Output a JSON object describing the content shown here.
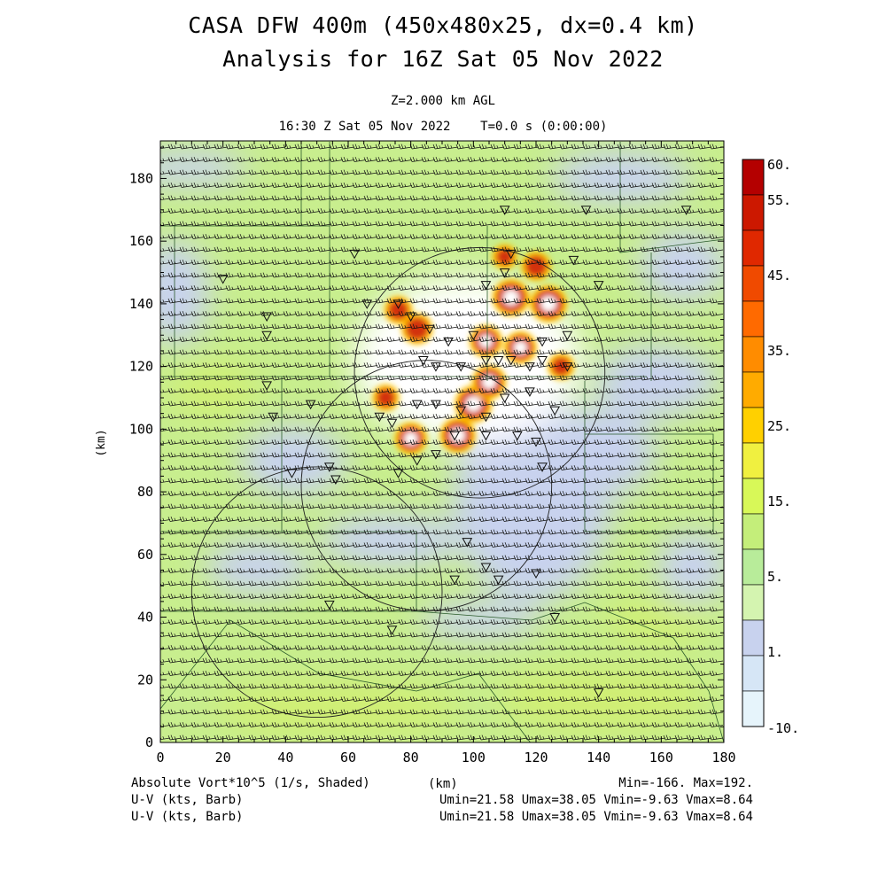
{
  "header": {
    "title_line1": "CASA DFW 400m (450x480x25, dx=0.4 km)",
    "title_line2": "Analysis for 16Z Sat 05 Nov 2022",
    "level": "Z=2.000 km AGL",
    "valid_time": "16:30 Z Sat 05 Nov 2022    T=0.0 s (0:00:00)"
  },
  "footer": {
    "field_label": "Absolute Vort*10^5 (1/s, Shaded)",
    "x_unit": "(km)",
    "minmax": "Min=-166. Max=192.",
    "barb1_label": "U-V (kts, Barb)",
    "barb1_stats": "Umin=21.58 Umax=38.05 Vmin=-9.63 Vmax=8.64",
    "barb2_label": "U-V (kts, Barb)",
    "barb2_stats": "Umin=21.58 Umax=38.05 Vmin=-9.63 Vmax=8.64"
  },
  "colors": {
    "background_green": "#c8ee8e",
    "lavender": "#c8d2ee",
    "lightblue": "#d8eefa",
    "white": "#ffffff",
    "core_red": "#d23210",
    "core_orange": "#ff8c00",
    "core_yellow": "#ffd000"
  },
  "chart_data": {
    "type": "heatmap",
    "title": "Absolute Vort*10^5 (1/s, Shaded)",
    "xlabel": "(km)",
    "ylabel": "(km)",
    "xlim": [
      0,
      180
    ],
    "ylim": [
      0,
      192
    ],
    "x_ticks": [
      "0",
      "20",
      "40",
      "60",
      "80",
      "100",
      "120",
      "140",
      "160",
      "180"
    ],
    "y_ticks": [
      "0",
      "20",
      "40",
      "60",
      "80",
      "100",
      "120",
      "140",
      "160",
      "180"
    ],
    "colorbar": {
      "levels": [
        -10,
        1,
        5,
        15,
        25,
        35,
        45,
        55,
        60
      ],
      "labels": [
        "60.",
        "55.",
        "45.",
        "35.",
        "25.",
        "15.",
        "5.",
        "1.",
        "-10."
      ],
      "colors": [
        "#b40000",
        "#cc1800",
        "#e02800",
        "#f04a00",
        "#ff6a00",
        "#ff8c00",
        "#ffab00",
        "#ffd000",
        "#f0f040",
        "#d8f858",
        "#c4ee7a",
        "#b8ec9a",
        "#d4f4b0",
        "#c8d2ee",
        "#d6e6f6",
        "#e6f4fb"
      ]
    },
    "vorticity_cores": [
      {
        "x": 76,
        "y": 138,
        "peak": 30
      },
      {
        "x": 82,
        "y": 132,
        "peak": 40
      },
      {
        "x": 72,
        "y": 110,
        "peak": 25
      },
      {
        "x": 80,
        "y": 97,
        "peak": 45
      },
      {
        "x": 95,
        "y": 98,
        "peak": 55
      },
      {
        "x": 100,
        "y": 108,
        "peak": 60
      },
      {
        "x": 105,
        "y": 115,
        "peak": 50
      },
      {
        "x": 104,
        "y": 128,
        "peak": 45
      },
      {
        "x": 115,
        "y": 126,
        "peak": 45
      },
      {
        "x": 112,
        "y": 142,
        "peak": 60
      },
      {
        "x": 124,
        "y": 140,
        "peak": 60
      },
      {
        "x": 120,
        "y": 152,
        "peak": 35
      },
      {
        "x": 128,
        "y": 120,
        "peak": 25
      },
      {
        "x": 110,
        "y": 155,
        "peak": 20
      }
    ],
    "wind": {
      "u_min": 21.58,
      "u_max": 38.05,
      "v_min": -9.63,
      "v_max": 8.64,
      "units": "kts"
    },
    "radar_range_rings": [
      {
        "center": [
          102,
          118
        ],
        "radius": 40
      },
      {
        "center": [
          85,
          82
        ],
        "radius": 40
      },
      {
        "center": [
          50,
          48
        ],
        "radius": 40
      }
    ],
    "stations": [
      [
        66,
        140
      ],
      [
        76,
        140
      ],
      [
        80,
        136
      ],
      [
        86,
        132
      ],
      [
        84,
        122
      ],
      [
        88,
        120
      ],
      [
        96,
        120
      ],
      [
        92,
        128
      ],
      [
        100,
        130
      ],
      [
        104,
        122
      ],
      [
        108,
        122
      ],
      [
        112,
        122
      ],
      [
        118,
        120
      ],
      [
        122,
        122
      ],
      [
        130,
        120
      ],
      [
        70,
        104
      ],
      [
        74,
        102
      ],
      [
        82,
        108
      ],
      [
        88,
        108
      ],
      [
        96,
        106
      ],
      [
        104,
        104
      ],
      [
        110,
        110
      ],
      [
        118,
        112
      ],
      [
        126,
        106
      ],
      [
        94,
        98
      ],
      [
        104,
        98
      ],
      [
        114,
        98
      ],
      [
        120,
        96
      ],
      [
        82,
        90
      ],
      [
        88,
        92
      ],
      [
        76,
        86
      ],
      [
        122,
        88
      ],
      [
        48,
        108
      ],
      [
        36,
        104
      ],
      [
        34,
        114
      ],
      [
        54,
        88
      ],
      [
        56,
        84
      ],
      [
        42,
        86
      ],
      [
        98,
        64
      ],
      [
        104,
        56
      ],
      [
        94,
        52
      ],
      [
        108,
        52
      ],
      [
        120,
        54
      ],
      [
        54,
        44
      ],
      [
        74,
        36
      ],
      [
        126,
        40
      ],
      [
        140,
        16
      ],
      [
        140,
        146
      ],
      [
        122,
        128
      ],
      [
        130,
        130
      ],
      [
        104,
        146
      ],
      [
        110,
        150
      ],
      [
        112,
        156
      ],
      [
        132,
        154
      ],
      [
        62,
        156
      ],
      [
        20,
        148
      ],
      [
        34,
        136
      ],
      [
        34,
        130
      ],
      [
        136,
        170
      ],
      [
        168,
        170
      ],
      [
        110,
        170
      ]
    ]
  }
}
